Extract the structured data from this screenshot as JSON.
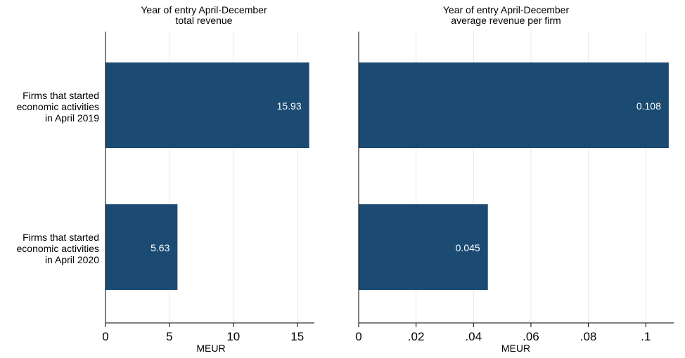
{
  "colors": {
    "bar": "#1b4a72",
    "bar_label": "#ffffff",
    "gridline": "#e8e8e8",
    "axis": "#000000",
    "text": "#000000"
  },
  "category_labels": [
    [
      "Firms that started",
      "economic activities",
      "in April 2019"
    ],
    [
      "Firms that started",
      "economic activities",
      "in April 2020"
    ]
  ],
  "chart_data": [
    {
      "type": "bar",
      "orientation": "horizontal",
      "title_lines": [
        "Year of entry April-December",
        "total revenue"
      ],
      "categories": [
        "Firms that started economic activities in April 2019",
        "Firms that started economic activities in April 2020"
      ],
      "values": [
        15.93,
        5.63
      ],
      "value_labels": [
        "15.93",
        "5.63"
      ],
      "xlabel": "MEUR",
      "xlim": [
        0,
        16.28
      ],
      "xticks": [
        0,
        5,
        10,
        15
      ],
      "xtick_labels": [
        "0",
        "5",
        "10",
        "15"
      ],
      "grid": true
    },
    {
      "type": "bar",
      "orientation": "horizontal",
      "title_lines": [
        "Year of entry April-December",
        "average revenue per firm"
      ],
      "categories": [
        "Firms that started economic activities in April 2019",
        "Firms that started economic activities in April 2020"
      ],
      "values": [
        0.108,
        0.045
      ],
      "value_labels": [
        "0.108",
        "0.045"
      ],
      "xlabel": "MEUR",
      "xlim": [
        0,
        0.1095
      ],
      "xticks": [
        0,
        0.02,
        0.04,
        0.06,
        0.08,
        0.1
      ],
      "xtick_labels": [
        "0",
        ".02",
        ".04",
        ".06",
        ".08",
        ".1"
      ],
      "grid": true
    }
  ]
}
